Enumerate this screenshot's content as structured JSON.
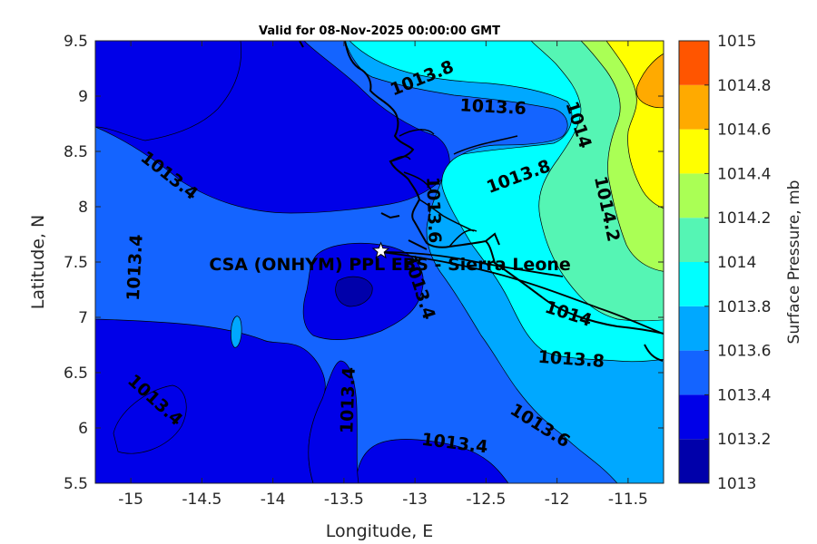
{
  "chart_data": {
    "type": "contour",
    "title": "Valid for 08-Nov-2025 00:00:00 GMT",
    "xlabel": "Longitude, E",
    "ylabel": "Latitude, N",
    "xlim": [
      -15.25,
      -11.25
    ],
    "ylim": [
      5.5,
      9.5
    ],
    "x_ticks": [
      -15,
      -14.5,
      -14,
      -13.5,
      -13,
      -12.5,
      -12,
      -11.5
    ],
    "x_tick_labels": [
      "-15",
      "-14.5",
      "-14",
      "-13.5",
      "-13",
      "-12.5",
      "-12",
      "-11.5"
    ],
    "y_ticks": [
      5.5,
      6,
      6.5,
      7,
      7.5,
      8,
      8.5,
      9,
      9.5
    ],
    "y_tick_labels": [
      "5.5",
      "6",
      "6.5",
      "7",
      "7.5",
      "8",
      "8.5",
      "9",
      "9.5"
    ],
    "colorbar": {
      "label": "Surface Pressure, mb",
      "levels": [
        1013,
        1013.2,
        1013.4,
        1013.6,
        1013.8,
        1014,
        1014.2,
        1014.4,
        1014.6,
        1014.8,
        1015
      ],
      "level_labels": [
        "1013",
        "1013.2",
        "1013.4",
        "1013.6",
        "1013.8",
        "1014",
        "1014.2",
        "1014.4",
        "1014.6",
        "1014.8",
        "1015"
      ],
      "colors": [
        "#0000aa",
        "#0000e8",
        "#1464ff",
        "#00a8ff",
        "#00ffff",
        "#55f5b4",
        "#aaff55",
        "#ffff00",
        "#ffaa00",
        "#ff5500",
        "#ff0000"
      ]
    },
    "contour_labels": [
      {
        "text": "1013.8",
        "lon": -12.95,
        "lat": 9.16,
        "angle": -22
      },
      {
        "text": "1013.6",
        "lon": -12.45,
        "lat": 8.9,
        "angle": 3
      },
      {
        "text": "1014",
        "lon": -11.85,
        "lat": 8.74,
        "angle": 72
      },
      {
        "text": "1013.4",
        "lon": -14.73,
        "lat": 8.28,
        "angle": 38
      },
      {
        "text": "1013.8",
        "lon": -12.27,
        "lat": 8.27,
        "angle": -20
      },
      {
        "text": "1013.6",
        "lon": -12.87,
        "lat": 7.97,
        "angle": 88
      },
      {
        "text": "1014.2",
        "lon": -11.65,
        "lat": 7.98,
        "angle": 78
      },
      {
        "text": "1013.4",
        "lon": -14.97,
        "lat": 7.45,
        "angle": -87
      },
      {
        "text": "1013.4",
        "lon": -12.97,
        "lat": 7.27,
        "angle": 72
      },
      {
        "text": "1014",
        "lon": -11.92,
        "lat": 7.03,
        "angle": 18
      },
      {
        "text": "1013.8",
        "lon": -11.9,
        "lat": 6.62,
        "angle": 4
      },
      {
        "text": "1013.4",
        "lon": -14.83,
        "lat": 6.25,
        "angle": 42
      },
      {
        "text": "1013.4",
        "lon": -13.47,
        "lat": 6.25,
        "angle": -88
      },
      {
        "text": "1013.6",
        "lon": -12.12,
        "lat": 6.02,
        "angle": 32
      },
      {
        "text": "1013.4",
        "lon": -12.72,
        "lat": 5.86,
        "angle": 7
      }
    ],
    "site": {
      "name": "CSA (ONHYM) PPL EBS - Sierra Leone",
      "lon": -13.24,
      "lat": 7.6,
      "marker": "star"
    }
  }
}
